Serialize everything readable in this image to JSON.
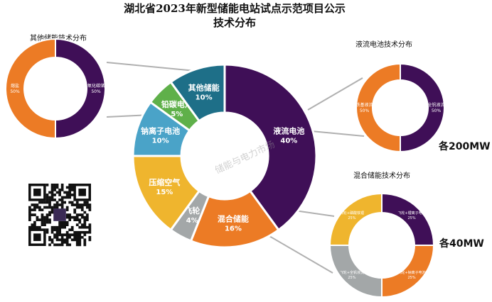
{
  "title_line1": "湖北省2023年新型储能电站试点示范项目公示",
  "title_line2": "技术分布",
  "watermark": "储能与电力市场",
  "colors": {
    "purple": "#3f0f57",
    "orange": "#ec7b25",
    "gray": "#a3a7a8",
    "yellow": "#efb52e",
    "blue": "#4aa3c8",
    "green": "#5fb04a",
    "teal": "#1e6f88"
  },
  "side_labels": {
    "other": "其他储能技术分布",
    "flow": "液流电池技术分布",
    "hybrid": "混合储能技术分布"
  },
  "sizes": {
    "flow": "各200MW",
    "hybrid": "各40MW"
  },
  "chart_data": [
    {
      "type": "pie",
      "name": "main",
      "donut": true,
      "categories": [
        "液流电池",
        "混合储能",
        "飞轮",
        "压缩空气",
        "钠离子电池",
        "铅碳电池",
        "其他储能"
      ],
      "values": [
        40,
        16,
        4,
        15,
        10,
        5,
        10
      ],
      "value_labels": [
        "40%",
        "16%",
        "4%",
        "15%",
        "10%",
        "5%",
        "10%"
      ],
      "colors": [
        "#3f0f57",
        "#ec7b25",
        "#a3a7a8",
        "#efb52e",
        "#4aa3c8",
        "#5fb04a",
        "#1e6f88"
      ]
    },
    {
      "type": "pie",
      "name": "other",
      "donut": true,
      "categories": [
        "二氧化碳储能",
        "熔盐"
      ],
      "values": [
        50,
        50
      ],
      "value_labels": [
        "50%",
        "50%"
      ],
      "colors": [
        "#3f0f57",
        "#ec7b25"
      ]
    },
    {
      "type": "pie",
      "name": "flow",
      "donut": true,
      "categories": [
        "全钒液流",
        "铁基液流"
      ],
      "values": [
        50,
        50
      ],
      "value_labels": [
        "50%",
        "50%"
      ],
      "colors": [
        "#3f0f57",
        "#ec7b25"
      ]
    },
    {
      "type": "pie",
      "name": "hybrid",
      "donut": true,
      "categories": [
        "飞轮+锂离子电池",
        "飞轮+钠离子电池",
        "飞轮+全钒液流",
        "飞轮+磷酸铁锂"
      ],
      "values": [
        25,
        25,
        25,
        25
      ],
      "value_labels": [
        "25%",
        "25%",
        "25%",
        "25%"
      ],
      "colors": [
        "#3f0f57",
        "#ec7b25",
        "#a3a7a8",
        "#efb52e"
      ]
    }
  ]
}
